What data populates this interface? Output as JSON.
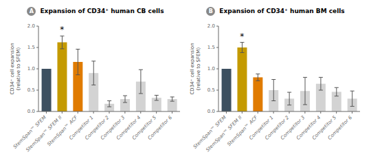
{
  "chart_data": [
    {
      "type": "bar",
      "title": "Expansion of CD34⁺ human CB cells",
      "ylabel": "CD34⁺ cell expansion\n(relative to SFEM)",
      "categories": [
        "StemSpan™ SFEM",
        "StemSpan™ SFEM II",
        "StemSpan™ ACF",
        "Competitor 1",
        "Competitor 2",
        "Competitor 3",
        "Competitor 4",
        "Competitor 5",
        "Competitor 6"
      ],
      "values": [
        1.0,
        1.62,
        1.16,
        0.9,
        0.18,
        0.29,
        0.7,
        0.32,
        0.29
      ],
      "errors": [
        0.0,
        0.15,
        0.3,
        0.28,
        0.07,
        0.08,
        0.28,
        0.06,
        0.05
      ],
      "colors": [
        "#3d5060",
        "#c49a00",
        "#e07b00",
        "#d3d3d3",
        "#d3d3d3",
        "#d3d3d3",
        "#d3d3d3",
        "#d3d3d3",
        "#d3d3d3"
      ],
      "ylim": [
        0,
        2.0
      ],
      "yticks": [
        {
          "value": 0.0,
          "label": "0.0"
        },
        {
          "value": 0.5,
          "label": "0.5"
        },
        {
          "value": 1.0,
          "label": "1.0"
        },
        {
          "value": 1.5,
          "label": "1.5"
        },
        {
          "value": 2.0,
          "label": "2.0"
        }
      ],
      "annotations": [
        {
          "text": "A",
          "color": "#888888"
        },
        {
          "text": "*",
          "category": "StemSpan™ SFEM II"
        }
      ]
    },
    {
      "type": "bar",
      "title": "Expansion of CD34⁺ human BM cells",
      "ylabel": "CD34⁺ cell expansion\n(relative to SFEM)",
      "categories": [
        "StemSpan™ SFEM",
        "StemSpan™ SFEM II",
        "StemSpan™ ACF",
        "Competitor 1",
        "Competitor 2",
        "Competitor 3",
        "Competitor 4",
        "Competitor 5",
        "Competitor 6"
      ],
      "values": [
        1.0,
        1.5,
        0.8,
        0.5,
        0.3,
        0.48,
        0.65,
        0.46,
        0.3
      ],
      "errors": [
        0.0,
        0.12,
        0.08,
        0.25,
        0.15,
        0.32,
        0.15,
        0.1,
        0.18
      ],
      "colors": [
        "#3d5060",
        "#c49a00",
        "#e07b00",
        "#d3d3d3",
        "#d3d3d3",
        "#d3d3d3",
        "#d3d3d3",
        "#d3d3d3",
        "#d3d3d3"
      ],
      "ylim": [
        0,
        2.0
      ],
      "yticks": [
        {
          "value": 0.0,
          "label": "0.0"
        },
        {
          "value": 0.5,
          "label": "0.5"
        },
        {
          "value": 1.0,
          "label": "1.0"
        },
        {
          "value": 1.5,
          "label": "1.5"
        },
        {
          "value": 2.0,
          "label": "2.0"
        }
      ],
      "annotations": [
        {
          "text": "B",
          "color": "#888888"
        },
        {
          "text": "*",
          "category": "StemSpan™ SFEM II"
        }
      ]
    }
  ]
}
